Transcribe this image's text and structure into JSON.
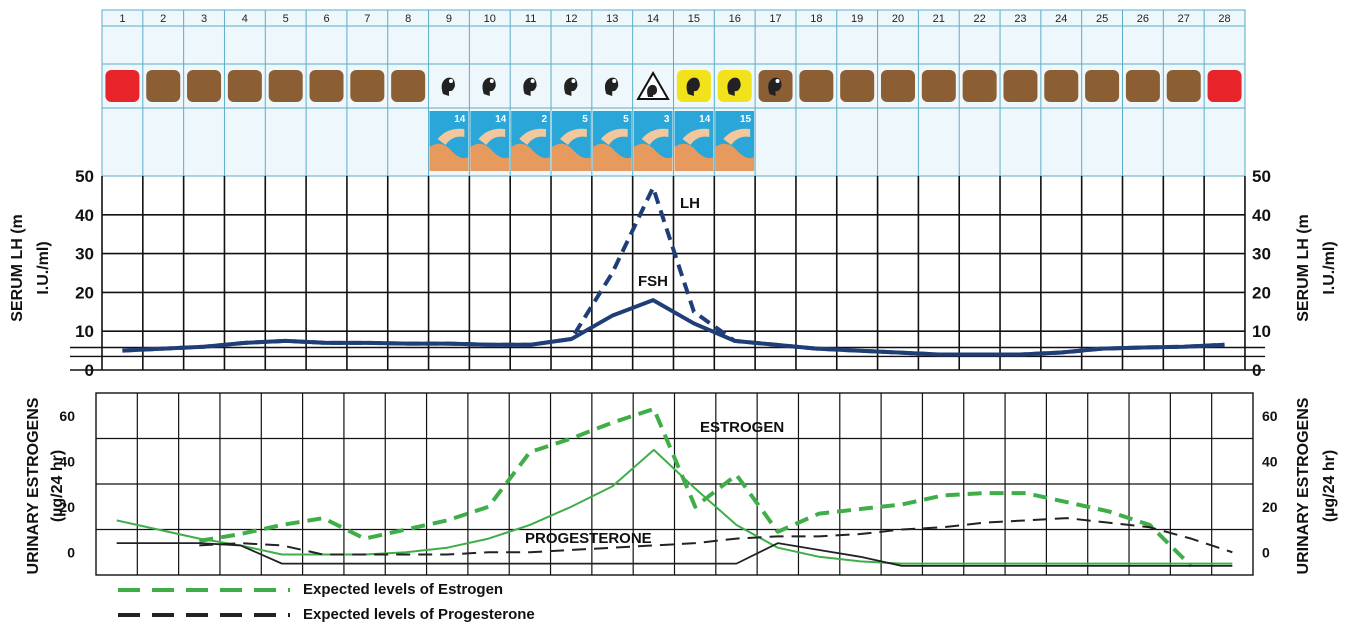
{
  "calendar": {
    "days": [
      "1",
      "2",
      "3",
      "4",
      "5",
      "6",
      "7",
      "8",
      "9",
      "10",
      "11",
      "12",
      "13",
      "14",
      "15",
      "16",
      "17",
      "18",
      "19",
      "20",
      "21",
      "22",
      "23",
      "24",
      "25",
      "26",
      "27",
      "28"
    ],
    "indicator_types": [
      "menses",
      "dry",
      "dry",
      "dry",
      "dry",
      "dry",
      "dry",
      "dry",
      "fertile",
      "fertile",
      "fertile",
      "fertile",
      "fertile",
      "peak",
      "fertile-yellow",
      "fertile-yellow",
      "fertile-brown",
      "dry",
      "dry",
      "dry",
      "dry",
      "dry",
      "dry",
      "dry",
      "dry",
      "dry",
      "dry",
      "menses"
    ],
    "indicator_types_note_colors": {
      "menses": "#e8242b",
      "dry": "#8b5e34",
      "fertile": "#ffffff",
      "fertile-yellow": "#f2e21c"
    },
    "photo_labels": [
      "14",
      "14",
      "2",
      "5",
      "5",
      "3",
      "14",
      "15"
    ]
  },
  "chart_data": [
    {
      "type": "line",
      "x": [
        1,
        2,
        3,
        4,
        5,
        6,
        7,
        8,
        9,
        10,
        11,
        12,
        13,
        14,
        15,
        16,
        17,
        18,
        19,
        20,
        21,
        22,
        23,
        24,
        25,
        26,
        27,
        28
      ],
      "ylim": [
        0,
        50
      ],
      "yticks": [
        "50",
        "40",
        "30",
        "20",
        "10",
        "0"
      ],
      "ylabel": "SERUM LH (m I.U./ml)",
      "series": [
        {
          "name": "LH",
          "style": "dashed",
          "color": "#1f3e78",
          "values": [
            5,
            5.5,
            6,
            7,
            7.5,
            7,
            7,
            6.8,
            6.8,
            6.5,
            6.5,
            8,
            25,
            47,
            15,
            7.5,
            6.5,
            5.5,
            5,
            4.5,
            4,
            4,
            4,
            4.5,
            5.5,
            5.8,
            6,
            6.5
          ]
        },
        {
          "name": "FSH",
          "style": "solid",
          "color": "#1f3e78",
          "values": [
            5,
            5.5,
            6,
            7,
            7.5,
            7,
            7,
            6.8,
            6.8,
            6.5,
            6.5,
            8,
            14,
            18,
            12,
            7.5,
            6.5,
            5.5,
            5,
            4.5,
            4,
            4,
            4,
            4.5,
            5.5,
            5.8,
            6,
            6.5
          ]
        }
      ]
    },
    {
      "type": "line",
      "x": [
        1,
        2,
        3,
        4,
        5,
        6,
        7,
        8,
        9,
        10,
        11,
        12,
        13,
        14,
        15,
        16,
        17,
        18,
        19,
        20,
        21,
        22,
        23,
        24,
        25,
        26,
        27,
        28
      ],
      "ylim": [
        -10,
        70
      ],
      "yticks": [
        "60",
        "40",
        "20",
        "0"
      ],
      "yticks_right": [
        "60",
        "40",
        "20",
        "0"
      ],
      "ylabel": "URINARY ESTROGENS (µg/24 hr)",
      "annotations": [
        "ESTROGEN",
        "PROGESTERONE"
      ],
      "legend": [
        "Expected levels of Estrogen",
        "Expected levels of Progesterone"
      ],
      "series": [
        {
          "style": "solid",
          "color": "#3fae49",
          "values": [
            14,
            10,
            6,
            3,
            -1,
            -1,
            -1,
            0,
            2,
            6,
            12,
            20,
            29,
            45,
            28,
            12,
            2,
            -2,
            -4,
            -5,
            -5,
            -5,
            -5,
            -5,
            -5,
            -5,
            -5,
            -5
          ]
        },
        {
          "style": "dashed",
          "color": "#3fae49",
          "values": [
            null,
            null,
            5,
            8,
            12,
            15,
            6,
            10,
            14,
            20,
            44,
            50,
            57,
            63,
            20,
            34,
            9,
            17,
            19,
            21,
            25,
            26,
            26,
            22,
            18,
            12,
            -6,
            null
          ]
        },
        {
          "style": "solid",
          "color": "#222222",
          "values": [
            4,
            4,
            4,
            3,
            -5,
            -5,
            -5,
            -5,
            -5,
            -5,
            -5,
            -5,
            -5,
            -5,
            -5,
            -5,
            4,
            1,
            -2,
            -6,
            -6,
            -6,
            -6,
            -6,
            -6,
            -6,
            -6,
            -6
          ]
        },
        {
          "style": "dashed",
          "color": "#222222",
          "values": [
            null,
            null,
            3,
            4,
            3,
            -1,
            -1,
            -1,
            -1,
            0,
            0,
            1,
            2,
            3,
            4,
            6,
            7,
            7,
            8,
            10,
            11,
            13,
            14,
            15,
            13,
            11,
            6,
            0
          ]
        }
      ]
    }
  ]
}
